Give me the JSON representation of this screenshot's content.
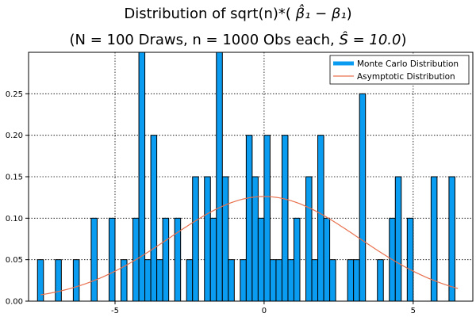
{
  "title_line_1_prefix": "Distribution of sqrt(n)*( ",
  "title_line_1_math": "β̂₁ − β₁",
  "title_line_1_suffix": ")",
  "title_line_2_prefix": "(N = 100 Draws, n = 1000 Obs each, ",
  "title_line_2_math": "Ŝ = 10.0",
  "title_line_2_suffix": ")",
  "colors": {
    "bar_fill": "#0a9cf0",
    "bar_edge": "#000000",
    "curve": "#e8704e",
    "legend_bar": "#0a9cf0"
  },
  "chart_data": {
    "type": "bar",
    "title": "Distribution of sqrt(n)*( β̂₁ − β₁) (N = 100 Draws, n = 1000 Obs each, Ŝ = 10.0)",
    "xlim": [
      -7.9,
      7.0
    ],
    "ylim": [
      0,
      0.3
    ],
    "x_ticks": [
      -5,
      0,
      5
    ],
    "x_tick_labels": [
      "-5",
      "0",
      "5"
    ],
    "y_ticks": [
      0.0,
      0.05,
      0.1,
      0.15,
      0.2,
      0.25
    ],
    "y_tick_labels": [
      "0.00",
      "0.05",
      "0.10",
      "0.15",
      "0.20",
      "0.25"
    ],
    "grid": true,
    "legend_position": "top-right",
    "bin_width": 0.2,
    "series": [
      {
        "name": "Monte Carlo Distribution",
        "kind": "histogram",
        "bin_centers": [
          -7.5,
          -6.9,
          -6.3,
          -5.7,
          -5.1,
          -4.7,
          -4.3,
          -4.1,
          -3.9,
          -3.7,
          -3.5,
          -3.3,
          -2.9,
          -2.5,
          -2.3,
          -1.9,
          -1.7,
          -1.5,
          -1.3,
          -1.1,
          -0.7,
          -0.5,
          -0.3,
          -0.1,
          0.1,
          0.3,
          0.5,
          0.7,
          0.9,
          1.1,
          1.5,
          1.7,
          1.9,
          2.1,
          2.3,
          2.9,
          3.1,
          3.3,
          3.9,
          4.3,
          4.5,
          4.9,
          5.7,
          6.3
        ],
        "values": [
          0.05,
          0.05,
          0.05,
          0.1,
          0.1,
          0.05,
          0.1,
          0.3,
          0.05,
          0.2,
          0.05,
          0.1,
          0.1,
          0.05,
          0.15,
          0.15,
          0.1,
          0.3,
          0.15,
          0.05,
          0.05,
          0.2,
          0.15,
          0.1,
          0.2,
          0.05,
          0.05,
          0.2,
          0.05,
          0.1,
          0.15,
          0.05,
          0.2,
          0.1,
          0.05,
          0.05,
          0.05,
          0.25,
          0.05,
          0.1,
          0.15,
          0.1,
          0.15,
          0.15
        ]
      },
      {
        "name": "Asymptotic Distribution",
        "kind": "line",
        "mean": 0.0,
        "sd": 3.162,
        "x_range": [
          -7.5,
          6.5
        ]
      }
    ]
  }
}
